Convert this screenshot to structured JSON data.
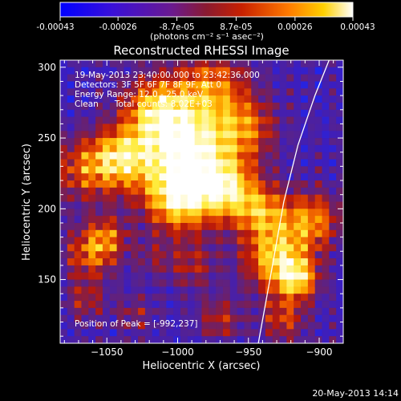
{
  "colorbar": {
    "tick_labels": [
      "-0.00043",
      "-0.00026",
      "-8.7e-05",
      "8.7e-05",
      "0.00026",
      "0.00043"
    ],
    "units": "(photons cm⁻² s⁻¹ asec⁻²)",
    "colors": [
      "#1a1aff",
      "#5a1fb8",
      "#7a2a6a",
      "#b02010",
      "#e84a00",
      "#ffb000",
      "#ffffff"
    ]
  },
  "info": {
    "line1": "19-May-2013 23:40:00.000 to 23:42:36.000",
    "line2": "Detectors: 3F 5F 6F 7F 8F 9F, Att 0",
    "line3": "Energy Range: 12.0 - 25.0 keV",
    "line4": "Clean      Total counts: 8.02E+03",
    "peak": "Position of Peak = [-992,237]"
  },
  "footer": {
    "timestamp": "20-May-2013 14:14"
  },
  "chart_data": {
    "type": "heatmap",
    "title": "Reconstructed RHESSI Image",
    "xlabel": "Heliocentric X (arcsec)",
    "ylabel": "Heliocentric Y (arcsec)",
    "xlim": [
      -1083,
      -883
    ],
    "ylim": [
      105,
      305
    ],
    "xticks": [
      -1050,
      -1000,
      -950,
      -900
    ],
    "xtick_labels": [
      "−1050",
      "−1000",
      "−950",
      "−900"
    ],
    "yticks": [
      150,
      200,
      250,
      300
    ],
    "ytick_labels": [
      "150",
      "200",
      "250",
      "300"
    ],
    "colorbar_range": [
      -0.00043,
      0.00043
    ],
    "peak": {
      "x": -992,
      "y": 237
    },
    "limb_curve": [
      [
        -943,
        105
      ],
      [
        -933,
        160
      ],
      [
        -925,
        205
      ],
      [
        -915,
        245
      ],
      [
        -903,
        280
      ],
      [
        -893,
        305
      ]
    ]
  }
}
